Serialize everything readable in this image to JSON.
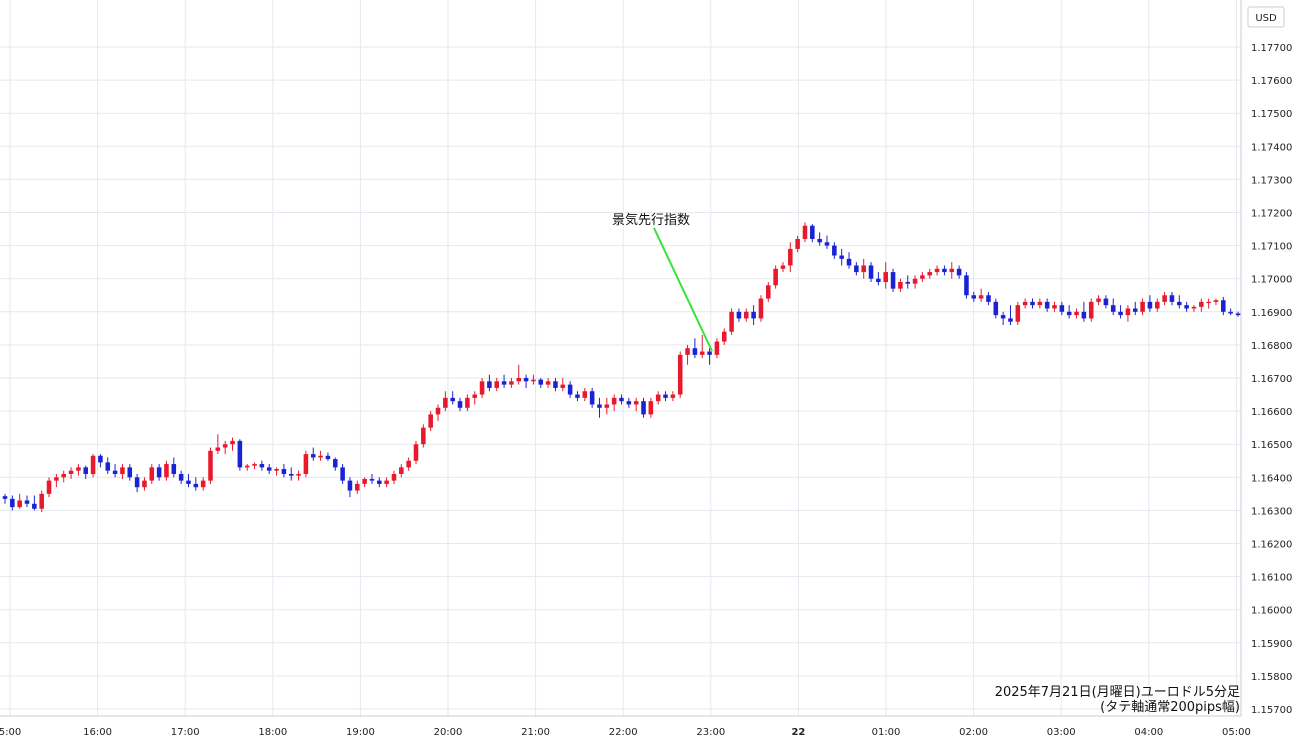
{
  "chart_data": {
    "type": "candlestick",
    "currency_unit": "USD",
    "y_ticks": [
      "1.17700",
      "1.17600",
      "1.17500",
      "1.17400",
      "1.17300",
      "1.17200",
      "1.17100",
      "1.17000",
      "1.16900",
      "1.16800",
      "1.16700",
      "1.16600",
      "1.16500",
      "1.16400",
      "1.16300",
      "1.16200",
      "1.16100",
      "1.16000",
      "1.15900",
      "1.15800",
      "1.15700"
    ],
    "ylim": [
      1.1567,
      1.179
    ],
    "x_ticks": [
      "5:00",
      "16:00",
      "17:00",
      "18:00",
      "19:00",
      "20:00",
      "21:00",
      "22:00",
      "23:00",
      "22",
      "01:00",
      "02:00",
      "03:00",
      "04:00",
      "05:00"
    ],
    "annotation": "景気先行指数",
    "note_line1": "2025年7月21日(月曜日)ユーロドル5分足",
    "note_line2": "(タテ軸通常200pips幅)",
    "colors": {
      "up": "#e8192c",
      "down": "#1a23d4",
      "annotation_line": "#39e139",
      "grid": "#e3e9ef"
    },
    "candles": [
      {
        "o": 1.16343,
        "h": 1.1635,
        "l": 1.1632,
        "c": 1.16335
      },
      {
        "o": 1.16335,
        "h": 1.16345,
        "l": 1.163,
        "c": 1.1631
      },
      {
        "o": 1.1631,
        "h": 1.1635,
        "l": 1.16305,
        "c": 1.1633
      },
      {
        "o": 1.1633,
        "h": 1.16345,
        "l": 1.1631,
        "c": 1.1632
      },
      {
        "o": 1.1632,
        "h": 1.16345,
        "l": 1.163,
        "c": 1.16305
      },
      {
        "o": 1.16305,
        "h": 1.1636,
        "l": 1.16295,
        "c": 1.1635
      },
      {
        "o": 1.1635,
        "h": 1.164,
        "l": 1.1634,
        "c": 1.1639
      },
      {
        "o": 1.1639,
        "h": 1.1641,
        "l": 1.1637,
        "c": 1.164
      },
      {
        "o": 1.164,
        "h": 1.1642,
        "l": 1.16385,
        "c": 1.1641
      },
      {
        "o": 1.1641,
        "h": 1.1643,
        "l": 1.16395,
        "c": 1.1642
      },
      {
        "o": 1.1642,
        "h": 1.1644,
        "l": 1.16405,
        "c": 1.1643
      },
      {
        "o": 1.1643,
        "h": 1.16435,
        "l": 1.16395,
        "c": 1.1641
      },
      {
        "o": 1.1641,
        "h": 1.1647,
        "l": 1.164,
        "c": 1.16465
      },
      {
        "o": 1.16465,
        "h": 1.1647,
        "l": 1.1643,
        "c": 1.16445
      },
      {
        "o": 1.16445,
        "h": 1.1646,
        "l": 1.1641,
        "c": 1.1642
      },
      {
        "o": 1.1642,
        "h": 1.1644,
        "l": 1.164,
        "c": 1.1641
      },
      {
        "o": 1.1641,
        "h": 1.1644,
        "l": 1.16395,
        "c": 1.1643
      },
      {
        "o": 1.1643,
        "h": 1.1644,
        "l": 1.1639,
        "c": 1.164
      },
      {
        "o": 1.164,
        "h": 1.1641,
        "l": 1.16355,
        "c": 1.1637
      },
      {
        "o": 1.1637,
        "h": 1.164,
        "l": 1.1636,
        "c": 1.1639
      },
      {
        "o": 1.1639,
        "h": 1.1644,
        "l": 1.1638,
        "c": 1.1643
      },
      {
        "o": 1.1643,
        "h": 1.1644,
        "l": 1.1639,
        "c": 1.164
      },
      {
        "o": 1.164,
        "h": 1.1645,
        "l": 1.1639,
        "c": 1.1644
      },
      {
        "o": 1.1644,
        "h": 1.1646,
        "l": 1.164,
        "c": 1.1641
      },
      {
        "o": 1.1641,
        "h": 1.1642,
        "l": 1.1638,
        "c": 1.1639
      },
      {
        "o": 1.1639,
        "h": 1.1641,
        "l": 1.1637,
        "c": 1.1638
      },
      {
        "o": 1.1638,
        "h": 1.164,
        "l": 1.1636,
        "c": 1.1637
      },
      {
        "o": 1.1637,
        "h": 1.164,
        "l": 1.1636,
        "c": 1.1639
      },
      {
        "o": 1.1639,
        "h": 1.1649,
        "l": 1.1638,
        "c": 1.1648
      },
      {
        "o": 1.1648,
        "h": 1.1653,
        "l": 1.1647,
        "c": 1.1649
      },
      {
        "o": 1.1649,
        "h": 1.1651,
        "l": 1.1647,
        "c": 1.165
      },
      {
        "o": 1.165,
        "h": 1.1652,
        "l": 1.1648,
        "c": 1.1651
      },
      {
        "o": 1.1651,
        "h": 1.16515,
        "l": 1.1642,
        "c": 1.1643
      },
      {
        "o": 1.1643,
        "h": 1.1644,
        "l": 1.1642,
        "c": 1.16435
      },
      {
        "o": 1.16435,
        "h": 1.16445,
        "l": 1.16425,
        "c": 1.1644
      },
      {
        "o": 1.1644,
        "h": 1.1645,
        "l": 1.1642,
        "c": 1.1643
      },
      {
        "o": 1.1643,
        "h": 1.1644,
        "l": 1.1641,
        "c": 1.1642
      },
      {
        "o": 1.1642,
        "h": 1.1643,
        "l": 1.16405,
        "c": 1.16425
      },
      {
        "o": 1.16425,
        "h": 1.1644,
        "l": 1.164,
        "c": 1.1641
      },
      {
        "o": 1.1641,
        "h": 1.1643,
        "l": 1.1639,
        "c": 1.16405
      },
      {
        "o": 1.16405,
        "h": 1.1642,
        "l": 1.1639,
        "c": 1.1641
      },
      {
        "o": 1.1641,
        "h": 1.1648,
        "l": 1.164,
        "c": 1.1647
      },
      {
        "o": 1.1647,
        "h": 1.1649,
        "l": 1.1645,
        "c": 1.1646
      },
      {
        "o": 1.1646,
        "h": 1.1648,
        "l": 1.1645,
        "c": 1.16465
      },
      {
        "o": 1.16465,
        "h": 1.16475,
        "l": 1.1645,
        "c": 1.16455
      },
      {
        "o": 1.16455,
        "h": 1.1646,
        "l": 1.1642,
        "c": 1.1643
      },
      {
        "o": 1.1643,
        "h": 1.1644,
        "l": 1.1638,
        "c": 1.1639
      },
      {
        "o": 1.1639,
        "h": 1.164,
        "l": 1.1634,
        "c": 1.1636
      },
      {
        "o": 1.1636,
        "h": 1.1639,
        "l": 1.1635,
        "c": 1.1638
      },
      {
        "o": 1.1638,
        "h": 1.164,
        "l": 1.1637,
        "c": 1.16395
      },
      {
        "o": 1.16395,
        "h": 1.1641,
        "l": 1.1638,
        "c": 1.1639
      },
      {
        "o": 1.1639,
        "h": 1.164,
        "l": 1.1637,
        "c": 1.1638
      },
      {
        "o": 1.1638,
        "h": 1.164,
        "l": 1.1637,
        "c": 1.1639
      },
      {
        "o": 1.1639,
        "h": 1.1642,
        "l": 1.1638,
        "c": 1.1641
      },
      {
        "o": 1.1641,
        "h": 1.1644,
        "l": 1.164,
        "c": 1.1643
      },
      {
        "o": 1.1643,
        "h": 1.1646,
        "l": 1.1642,
        "c": 1.1645
      },
      {
        "o": 1.1645,
        "h": 1.1651,
        "l": 1.1644,
        "c": 1.165
      },
      {
        "o": 1.165,
        "h": 1.1656,
        "l": 1.1649,
        "c": 1.1655
      },
      {
        "o": 1.1655,
        "h": 1.166,
        "l": 1.1654,
        "c": 1.1659
      },
      {
        "o": 1.1659,
        "h": 1.1662,
        "l": 1.1657,
        "c": 1.1661
      },
      {
        "o": 1.1661,
        "h": 1.1666,
        "l": 1.166,
        "c": 1.1664
      },
      {
        "o": 1.1664,
        "h": 1.1666,
        "l": 1.1662,
        "c": 1.1663
      },
      {
        "o": 1.1663,
        "h": 1.1664,
        "l": 1.166,
        "c": 1.1661
      },
      {
        "o": 1.1661,
        "h": 1.1665,
        "l": 1.166,
        "c": 1.1664
      },
      {
        "o": 1.1664,
        "h": 1.1666,
        "l": 1.1662,
        "c": 1.1665
      },
      {
        "o": 1.1665,
        "h": 1.167,
        "l": 1.1664,
        "c": 1.1669
      },
      {
        "o": 1.1669,
        "h": 1.1671,
        "l": 1.1666,
        "c": 1.1667
      },
      {
        "o": 1.1667,
        "h": 1.167,
        "l": 1.1666,
        "c": 1.1669
      },
      {
        "o": 1.1669,
        "h": 1.1671,
        "l": 1.1667,
        "c": 1.1668
      },
      {
        "o": 1.1668,
        "h": 1.167,
        "l": 1.1667,
        "c": 1.1669
      },
      {
        "o": 1.1669,
        "h": 1.1674,
        "l": 1.1668,
        "c": 1.167
      },
      {
        "o": 1.167,
        "h": 1.1671,
        "l": 1.1667,
        "c": 1.1669
      },
      {
        "o": 1.1669,
        "h": 1.1671,
        "l": 1.1668,
        "c": 1.16695
      },
      {
        "o": 1.16695,
        "h": 1.167,
        "l": 1.1667,
        "c": 1.1668
      },
      {
        "o": 1.1668,
        "h": 1.167,
        "l": 1.1667,
        "c": 1.1669
      },
      {
        "o": 1.1669,
        "h": 1.167,
        "l": 1.1666,
        "c": 1.1667
      },
      {
        "o": 1.1667,
        "h": 1.167,
        "l": 1.1666,
        "c": 1.1668
      },
      {
        "o": 1.1668,
        "h": 1.1669,
        "l": 1.1664,
        "c": 1.1665
      },
      {
        "o": 1.1665,
        "h": 1.1666,
        "l": 1.1663,
        "c": 1.1664
      },
      {
        "o": 1.1664,
        "h": 1.1667,
        "l": 1.1663,
        "c": 1.1666
      },
      {
        "o": 1.1666,
        "h": 1.1667,
        "l": 1.1661,
        "c": 1.1662
      },
      {
        "o": 1.1662,
        "h": 1.1664,
        "l": 1.1658,
        "c": 1.1661
      },
      {
        "o": 1.1661,
        "h": 1.1664,
        "l": 1.1659,
        "c": 1.1662
      },
      {
        "o": 1.1662,
        "h": 1.1665,
        "l": 1.166,
        "c": 1.1664
      },
      {
        "o": 1.1664,
        "h": 1.1665,
        "l": 1.1662,
        "c": 1.1663
      },
      {
        "o": 1.1663,
        "h": 1.1664,
        "l": 1.1661,
        "c": 1.1662
      },
      {
        "o": 1.1662,
        "h": 1.1664,
        "l": 1.166,
        "c": 1.1663
      },
      {
        "o": 1.1663,
        "h": 1.1664,
        "l": 1.1658,
        "c": 1.1659
      },
      {
        "o": 1.1659,
        "h": 1.1664,
        "l": 1.1658,
        "c": 1.1663
      },
      {
        "o": 1.1663,
        "h": 1.1666,
        "l": 1.1662,
        "c": 1.1665
      },
      {
        "o": 1.1665,
        "h": 1.1666,
        "l": 1.1663,
        "c": 1.1664
      },
      {
        "o": 1.1664,
        "h": 1.1666,
        "l": 1.1663,
        "c": 1.1665
      },
      {
        "o": 1.1665,
        "h": 1.1678,
        "l": 1.1664,
        "c": 1.1677
      },
      {
        "o": 1.1677,
        "h": 1.168,
        "l": 1.1674,
        "c": 1.1679
      },
      {
        "o": 1.1679,
        "h": 1.1682,
        "l": 1.1676,
        "c": 1.1677
      },
      {
        "o": 1.1677,
        "h": 1.1683,
        "l": 1.1676,
        "c": 1.1678
      },
      {
        "o": 1.1678,
        "h": 1.1679,
        "l": 1.1674,
        "c": 1.1677
      },
      {
        "o": 1.1677,
        "h": 1.1682,
        "l": 1.1676,
        "c": 1.1681
      },
      {
        "o": 1.1681,
        "h": 1.1685,
        "l": 1.168,
        "c": 1.1684
      },
      {
        "o": 1.1684,
        "h": 1.1691,
        "l": 1.1683,
        "c": 1.169
      },
      {
        "o": 1.169,
        "h": 1.1691,
        "l": 1.1687,
        "c": 1.1688
      },
      {
        "o": 1.1688,
        "h": 1.1691,
        "l": 1.1687,
        "c": 1.169
      },
      {
        "o": 1.169,
        "h": 1.1692,
        "l": 1.1686,
        "c": 1.1688
      },
      {
        "o": 1.1688,
        "h": 1.1695,
        "l": 1.1687,
        "c": 1.1694
      },
      {
        "o": 1.1694,
        "h": 1.1699,
        "l": 1.1693,
        "c": 1.1698
      },
      {
        "o": 1.1698,
        "h": 1.1704,
        "l": 1.1697,
        "c": 1.1703
      },
      {
        "o": 1.1703,
        "h": 1.1705,
        "l": 1.1702,
        "c": 1.1704
      },
      {
        "o": 1.1704,
        "h": 1.1711,
        "l": 1.1702,
        "c": 1.1709
      },
      {
        "o": 1.1709,
        "h": 1.1713,
        "l": 1.1708,
        "c": 1.1712
      },
      {
        "o": 1.1712,
        "h": 1.1717,
        "l": 1.1711,
        "c": 1.1716
      },
      {
        "o": 1.1716,
        "h": 1.17165,
        "l": 1.1711,
        "c": 1.1712
      },
      {
        "o": 1.1712,
        "h": 1.1714,
        "l": 1.171,
        "c": 1.1711
      },
      {
        "o": 1.1711,
        "h": 1.1713,
        "l": 1.1709,
        "c": 1.171
      },
      {
        "o": 1.171,
        "h": 1.1711,
        "l": 1.1706,
        "c": 1.1707
      },
      {
        "o": 1.1707,
        "h": 1.1709,
        "l": 1.1704,
        "c": 1.1706
      },
      {
        "o": 1.1706,
        "h": 1.1708,
        "l": 1.1703,
        "c": 1.1704
      },
      {
        "o": 1.1704,
        "h": 1.1705,
        "l": 1.1701,
        "c": 1.1702
      },
      {
        "o": 1.1702,
        "h": 1.1706,
        "l": 1.17,
        "c": 1.1704
      },
      {
        "o": 1.1704,
        "h": 1.1705,
        "l": 1.1699,
        "c": 1.17
      },
      {
        "o": 1.17,
        "h": 1.1702,
        "l": 1.1698,
        "c": 1.1699
      },
      {
        "o": 1.1699,
        "h": 1.1705,
        "l": 1.1697,
        "c": 1.1702
      },
      {
        "o": 1.1702,
        "h": 1.1703,
        "l": 1.1696,
        "c": 1.1697
      },
      {
        "o": 1.1697,
        "h": 1.17,
        "l": 1.1696,
        "c": 1.1699
      },
      {
        "o": 1.1699,
        "h": 1.1701,
        "l": 1.1697,
        "c": 1.16985
      },
      {
        "o": 1.16985,
        "h": 1.1701,
        "l": 1.1697,
        "c": 1.17
      },
      {
        "o": 1.17,
        "h": 1.1702,
        "l": 1.1699,
        "c": 1.1701
      },
      {
        "o": 1.1701,
        "h": 1.1703,
        "l": 1.17,
        "c": 1.1702
      },
      {
        "o": 1.1702,
        "h": 1.1704,
        "l": 1.1701,
        "c": 1.1703
      },
      {
        "o": 1.1703,
        "h": 1.1704,
        "l": 1.1701,
        "c": 1.1702
      },
      {
        "o": 1.1702,
        "h": 1.1705,
        "l": 1.17,
        "c": 1.1703
      },
      {
        "o": 1.1703,
        "h": 1.1704,
        "l": 1.17,
        "c": 1.1701
      },
      {
        "o": 1.1701,
        "h": 1.1702,
        "l": 1.1694,
        "c": 1.1695
      },
      {
        "o": 1.1695,
        "h": 1.1696,
        "l": 1.1693,
        "c": 1.1694
      },
      {
        "o": 1.1694,
        "h": 1.1697,
        "l": 1.1693,
        "c": 1.1695
      },
      {
        "o": 1.1695,
        "h": 1.1696,
        "l": 1.1692,
        "c": 1.1693
      },
      {
        "o": 1.1693,
        "h": 1.1694,
        "l": 1.1688,
        "c": 1.1689
      },
      {
        "o": 1.1689,
        "h": 1.169,
        "l": 1.1686,
        "c": 1.1688
      },
      {
        "o": 1.1688,
        "h": 1.1692,
        "l": 1.1686,
        "c": 1.1687
      },
      {
        "o": 1.1687,
        "h": 1.1693,
        "l": 1.1686,
        "c": 1.1692
      },
      {
        "o": 1.1692,
        "h": 1.1694,
        "l": 1.1691,
        "c": 1.1693
      },
      {
        "o": 1.1693,
        "h": 1.1694,
        "l": 1.1691,
        "c": 1.1692
      },
      {
        "o": 1.1692,
        "h": 1.1694,
        "l": 1.1691,
        "c": 1.1693
      },
      {
        "o": 1.1693,
        "h": 1.1694,
        "l": 1.169,
        "c": 1.1691
      },
      {
        "o": 1.1691,
        "h": 1.1693,
        "l": 1.169,
        "c": 1.1692
      },
      {
        "o": 1.1692,
        "h": 1.1693,
        "l": 1.1689,
        "c": 1.169
      },
      {
        "o": 1.169,
        "h": 1.1692,
        "l": 1.1688,
        "c": 1.1689
      },
      {
        "o": 1.1689,
        "h": 1.1691,
        "l": 1.1688,
        "c": 1.169
      },
      {
        "o": 1.169,
        "h": 1.1693,
        "l": 1.1687,
        "c": 1.1688
      },
      {
        "o": 1.1688,
        "h": 1.1694,
        "l": 1.1687,
        "c": 1.1693
      },
      {
        "o": 1.1693,
        "h": 1.1695,
        "l": 1.1692,
        "c": 1.1694
      },
      {
        "o": 1.1694,
        "h": 1.1695,
        "l": 1.1691,
        "c": 1.1692
      },
      {
        "o": 1.1692,
        "h": 1.1694,
        "l": 1.1689,
        "c": 1.169
      },
      {
        "o": 1.169,
        "h": 1.1692,
        "l": 1.1688,
        "c": 1.1689
      },
      {
        "o": 1.1689,
        "h": 1.1692,
        "l": 1.1687,
        "c": 1.1691
      },
      {
        "o": 1.1691,
        "h": 1.1693,
        "l": 1.1689,
        "c": 1.169
      },
      {
        "o": 1.169,
        "h": 1.1694,
        "l": 1.1689,
        "c": 1.1693
      },
      {
        "o": 1.1693,
        "h": 1.1695,
        "l": 1.169,
        "c": 1.1691
      },
      {
        "o": 1.1691,
        "h": 1.1694,
        "l": 1.169,
        "c": 1.1693
      },
      {
        "o": 1.1693,
        "h": 1.1696,
        "l": 1.1692,
        "c": 1.1695
      },
      {
        "o": 1.1695,
        "h": 1.1696,
        "l": 1.1692,
        "c": 1.1693
      },
      {
        "o": 1.1693,
        "h": 1.1695,
        "l": 1.1691,
        "c": 1.1692
      },
      {
        "o": 1.1692,
        "h": 1.1693,
        "l": 1.169,
        "c": 1.1691
      },
      {
        "o": 1.1691,
        "h": 1.1692,
        "l": 1.169,
        "c": 1.16915
      },
      {
        "o": 1.16915,
        "h": 1.1694,
        "l": 1.169,
        "c": 1.1693
      },
      {
        "o": 1.1693,
        "h": 1.1694,
        "l": 1.1691,
        "c": 1.1693
      },
      {
        "o": 1.1693,
        "h": 1.1694,
        "l": 1.1692,
        "c": 1.16935
      },
      {
        "o": 1.16935,
        "h": 1.16945,
        "l": 1.1689,
        "c": 1.169
      },
      {
        "o": 1.169,
        "h": 1.1691,
        "l": 1.1689,
        "c": 1.16895
      },
      {
        "o": 1.16895,
        "h": 1.169,
        "l": 1.16885,
        "c": 1.1689
      }
    ]
  }
}
